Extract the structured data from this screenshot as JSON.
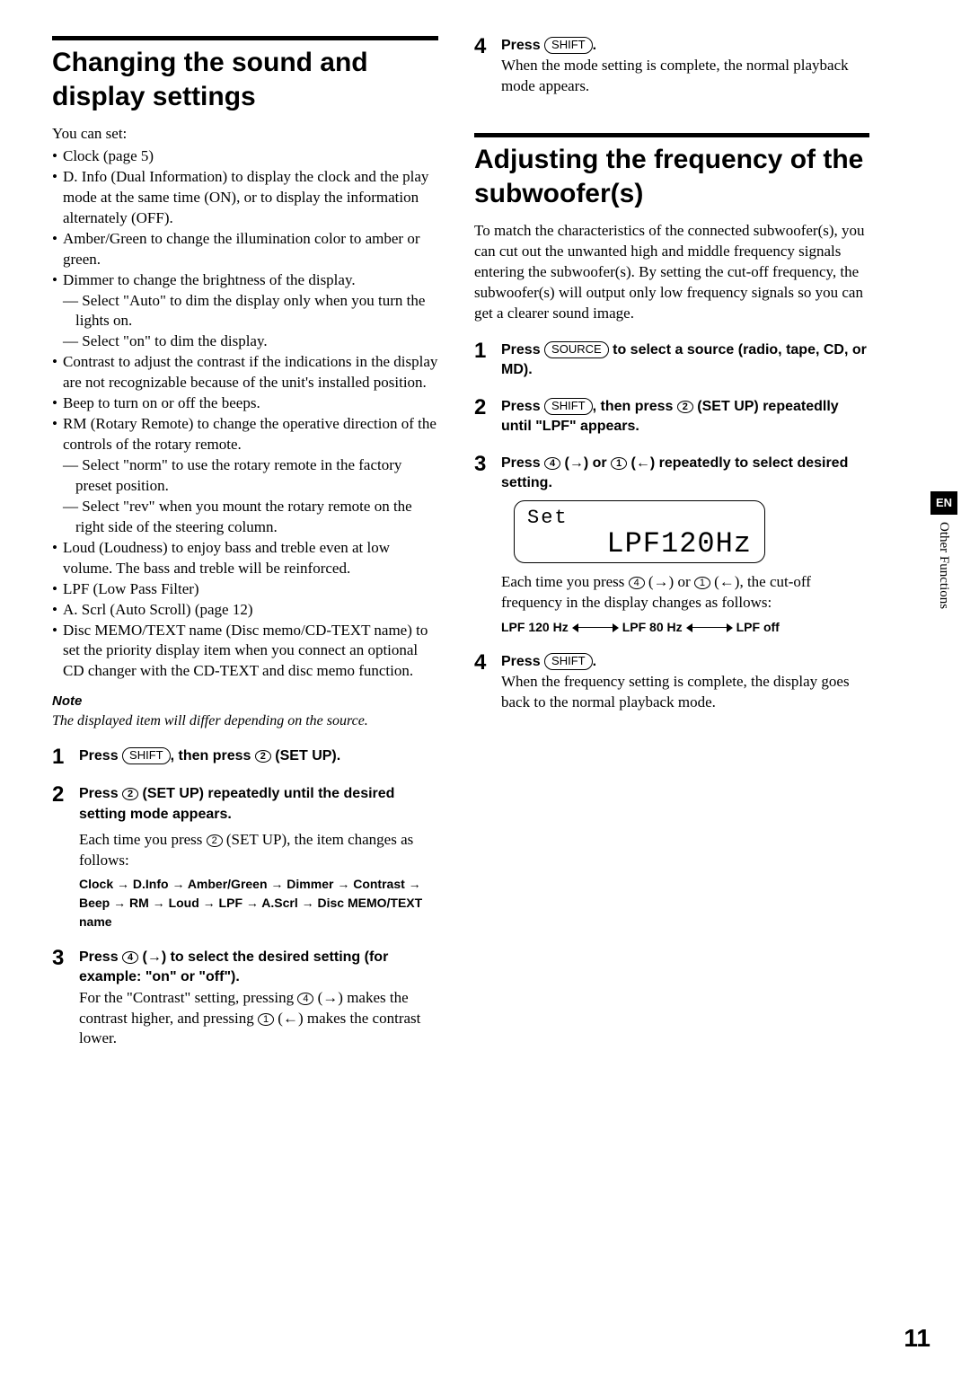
{
  "page_number": "11",
  "side_tab": {
    "lang": "EN",
    "section": "Other Functions"
  },
  "left": {
    "title": "Changing the sound and display settings",
    "intro": "You can set:",
    "bullets": [
      {
        "line": "Clock (page 5)"
      },
      {
        "line": "D. Info (Dual Information) to display the clock and the play mode at the same time (ON), or to display the information alternately (OFF)."
      },
      {
        "line": "Amber/Green to change the illumination color to amber or green."
      },
      {
        "line": "Dimmer to change the brightness of the display.",
        "subs": [
          "— Select \"Auto\" to dim the display only when you turn the lights on.",
          "— Select \"on\" to dim the display."
        ]
      },
      {
        "line": "Contrast to adjust the contrast if the indications in the display are not recognizable because of the unit's installed position."
      },
      {
        "line": "Beep to turn on or off the beeps."
      },
      {
        "line": "RM (Rotary Remote) to change the operative direction of the controls of the rotary remote.",
        "subs": [
          "— Select \"norm\" to use the rotary remote in the factory preset position.",
          "— Select \"rev\" when you mount the rotary remote on the right side of the steering column."
        ]
      },
      {
        "line": "Loud (Loudness) to enjoy bass and treble even at low volume. The bass and treble will be reinforced."
      },
      {
        "line": "LPF (Low Pass Filter)"
      },
      {
        "line": "A. Scrl (Auto Scroll) (page 12)"
      },
      {
        "line": "Disc MEMO/TEXT name (Disc memo/CD-TEXT name) to set the priority display item when you connect an optional CD changer with the CD-TEXT and disc memo function."
      }
    ],
    "note_label": "Note",
    "note_text": "The displayed item will differ depending on the source.",
    "steps": {
      "s1_a": "Press ",
      "s1_btn": "SHIFT",
      "s1_b": ", then press ",
      "s1_c2": "2",
      "s1_c": " (SET UP).",
      "s2_a": "Press ",
      "s2_c2": "2",
      "s2_b": " (SET UP) repeatedly until the desired setting mode appears.",
      "s2_body_a": "Each time you press ",
      "s2_body_c2": "2",
      "s2_body_b": " (SET UP), the item changes as follows:",
      "s2_seq": "Clock → D.Info → Amber/Green → Dimmer → Contrast → Beep → RM → Loud → LPF → A.Scrl → Disc MEMO/TEXT name",
      "s3_a": "Press ",
      "s3_c4": "4",
      "s3_b": " (→) to select the desired setting (for example: \"on\" or \"off\").",
      "s3_body_a": "For the \"Contrast\" setting, pressing ",
      "s3_body_c4": "4",
      "s3_body_b": " (→) makes the contrast higher, and pressing ",
      "s3_body_c1": "1",
      "s3_body_c": " (←) makes the contrast lower."
    }
  },
  "right_top": {
    "s4_a": "Press ",
    "s4_btn": "SHIFT",
    "s4_b": ".",
    "s4_body": "When the mode setting is complete, the normal playback mode appears."
  },
  "right": {
    "title": "Adjusting the frequency of the subwoofer(s)",
    "intro": "To match the characteristics of the connected subwoofer(s), you can cut out the unwanted high and middle frequency signals entering the subwoofer(s). By setting the cut-off frequency,  the subwoofer(s) will output only low frequency signals so you can get a clearer sound image.",
    "s1_a": "Press ",
    "s1_btn": "SOURCE",
    "s1_b": " to select a source (radio, tape, CD, or MD).",
    "s2_a": "Press ",
    "s2_btn": "SHIFT",
    "s2_b": ", then press ",
    "s2_c2": "2",
    "s2_c": " (SET UP) repeatedlly until \"LPF\" appears.",
    "s3_a": "Press ",
    "s3_c4": "4",
    "s3_b": " (→) or ",
    "s3_c1": "1",
    "s3_c": " (←) repeatedly to select desired setting.",
    "lcd_top": "Set",
    "lcd_main": "LPF120Hz",
    "s3_body_a": "Each time you press ",
    "s3_body_c4": "4",
    "s3_body_b": " (→) or ",
    "s3_body_c1": "1",
    "s3_body_c": " (←), the cut-off frequency in the display changes as follows:",
    "freq1": "LPF 120 Hz",
    "freq2": "LPF 80 Hz",
    "freq3": "LPF off",
    "s4_a": "Press ",
    "s4_btn": "SHIFT",
    "s4_b": ".",
    "s4_body": "When the frequency setting is complete, the display goes back to the normal playback mode."
  }
}
